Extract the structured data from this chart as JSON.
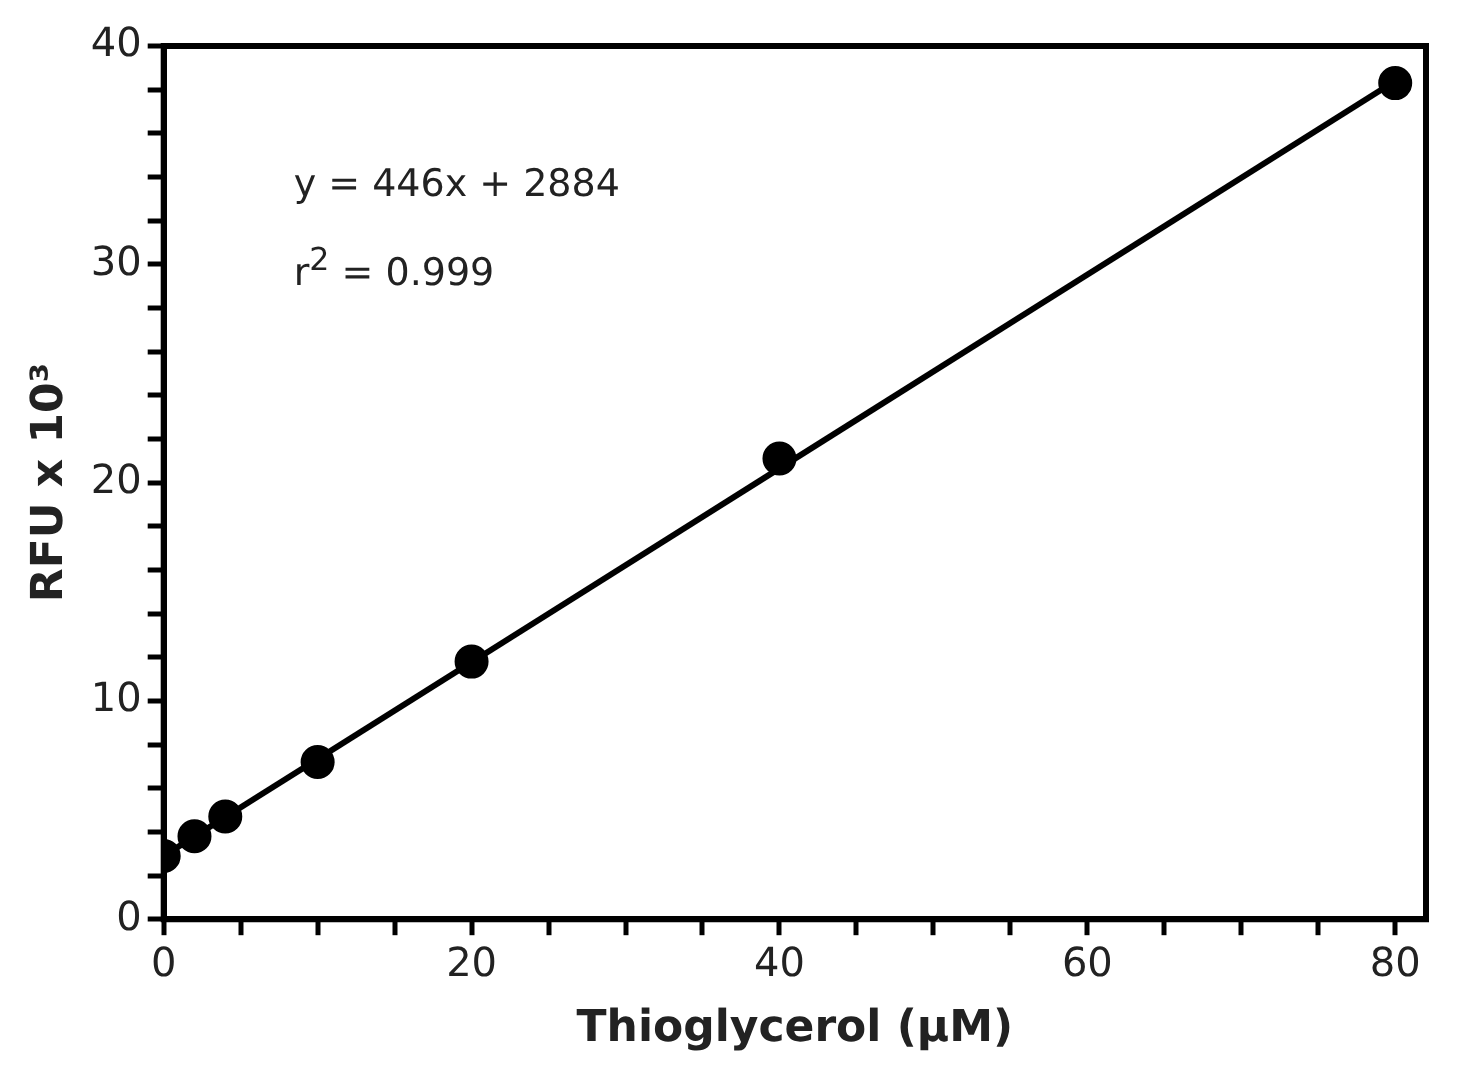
{
  "chart_data": {
    "type": "scatter",
    "xlabel": "Thioglycerol (µM)",
    "ylabel": "RFU x 10³",
    "x": [
      0,
      2,
      4,
      10,
      20,
      40,
      80
    ],
    "series": [
      {
        "color": "#000000",
        "values": [
          2.9,
          3.8,
          4.7,
          7.2,
          11.8,
          21.1,
          38.3
        ],
        "marker": "circle"
      },
      {
        "type": "line",
        "color": "#000000",
        "x": [
          0,
          80
        ],
        "values": [
          2.9,
          38.4
        ],
        "marker": "none",
        "line_style": "solid"
      }
    ],
    "annotations": [
      "y = 446x + 2884",
      "r$^{2}$ = 0.999"
    ],
    "xlim": [
      0,
      82
    ],
    "xticks": [
      0,
      {
        "value": 5,
        "label": null
      },
      {
        "value": 10,
        "label": null
      },
      {
        "value": 15,
        "label": null
      },
      20,
      {
        "value": 25,
        "label": null
      },
      {
        "value": 30,
        "label": null
      },
      {
        "value": 35,
        "label": null
      },
      40,
      {
        "value": 45,
        "label": null
      },
      {
        "value": 50,
        "label": null
      },
      {
        "value": 55,
        "label": null
      },
      60,
      {
        "value": 65,
        "label": null
      },
      {
        "value": 70,
        "label": null
      },
      {
        "value": 75,
        "label": null
      },
      80
    ],
    "ylim": [
      0,
      40
    ],
    "yticks": [
      0,
      {
        "value": 2,
        "label": null
      },
      {
        "value": 4,
        "label": null
      },
      {
        "value": 6,
        "label": null
      },
      {
        "value": 8,
        "label": null
      },
      10,
      {
        "value": 12,
        "label": null
      },
      {
        "value": 14,
        "label": null
      },
      {
        "value": 16,
        "label": null
      },
      {
        "value": 18,
        "label": null
      },
      20,
      {
        "value": 22,
        "label": null
      },
      {
        "value": 24,
        "label": null
      },
      {
        "value": 26,
        "label": null
      },
      {
        "value": 28,
        "label": null
      },
      30,
      {
        "value": 32,
        "label": null
      },
      {
        "value": 34,
        "label": null
      },
      {
        "value": 36,
        "label": null
      },
      {
        "value": 38,
        "label": null
      },
      40
    ],
    "grid": false,
    "legend": false
  }
}
